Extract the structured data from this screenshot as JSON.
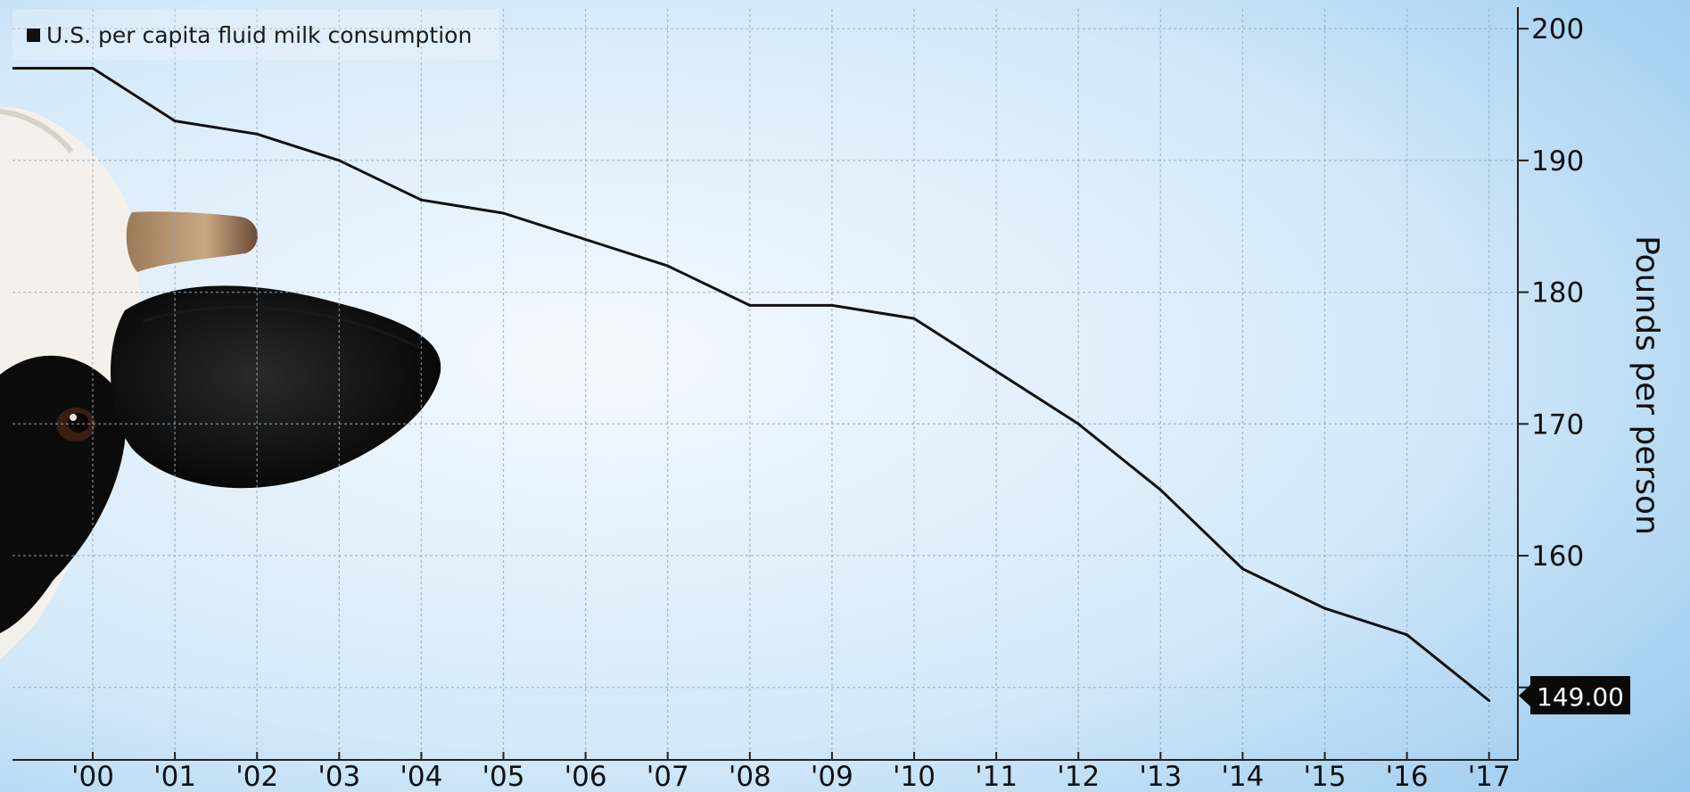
{
  "colors": {
    "background_light": "#f2f8fd",
    "background_blue": "#8ec4ec",
    "line": "#111111",
    "grid": "#8fa9bf",
    "label_box": "#0a0a0a"
  },
  "chart_data": {
    "type": "line",
    "title": "",
    "xlabel": "",
    "ylabel": "Pounds per person",
    "x": [
      "'00",
      "'01",
      "'02",
      "'03",
      "'04",
      "'05",
      "'06",
      "'07",
      "'08",
      "'09",
      "'10",
      "'11",
      "'12",
      "'13",
      "'14",
      "'15",
      "'16",
      "'17"
    ],
    "series": [
      {
        "name": "U.S. per capita fluid milk consumption",
        "color": "#111111",
        "values": [
          197,
          193,
          192,
          190,
          187,
          186,
          184,
          182,
          179,
          179,
          178,
          174,
          170,
          165,
          159,
          156,
          154,
          149
        ]
      }
    ],
    "start_value": 197,
    "yticks": [
      150,
      160,
      170,
      180,
      190,
      200
    ],
    "ylim": [
      144.5,
      201.5
    ],
    "y_axis_side": "right",
    "grid": true,
    "legend_position": "top-left",
    "last_value_label": "149.00",
    "background_image": "cow-head-peeking-icon"
  }
}
